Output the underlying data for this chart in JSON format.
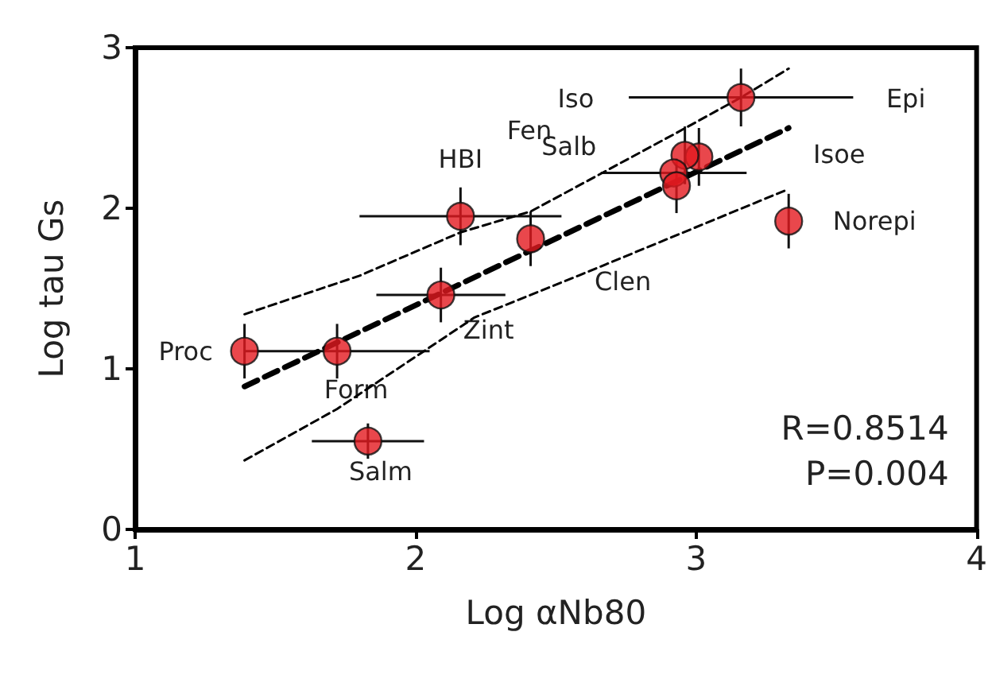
{
  "chart_data": {
    "type": "scatter",
    "xlabel": "Log αNb80",
    "ylabel": "Log tau Gs",
    "xlim": [
      1,
      4
    ],
    "xticks": [
      1,
      2,
      3,
      4
    ],
    "ylim": [
      0,
      3
    ],
    "yticks": [
      0,
      1,
      2,
      3
    ],
    "grid": false,
    "marker": "circle",
    "series": [
      {
        "type": "scatter",
        "color": "#e3191f",
        "x": [
          1.39,
          1.72,
          1.83,
          2.09,
          2.16,
          2.41,
          3.16,
          3.01,
          2.96,
          2.92,
          2.93,
          3.33
        ],
        "values": [
          1.11,
          1.11,
          0.55,
          1.46,
          1.95,
          1.81,
          2.69,
          2.32,
          2.33,
          2.22,
          2.14,
          1.92
        ],
        "errors": [
          0.17,
          0.17,
          0.11,
          0.17,
          0.18,
          0.17,
          0.18,
          0.18,
          0.18,
          null,
          0.17,
          0.17
        ],
        "xerrors": [
          null,
          0.33,
          0.2,
          0.23,
          0.36,
          null,
          0.4,
          null,
          null,
          0.26,
          null,
          null
        ]
      },
      {
        "type": "line",
        "color": "#000000",
        "line_style": "dashed",
        "marker": "none",
        "x": [
          1.39,
          3.33
        ],
        "values": [
          0.89,
          2.5
        ]
      },
      {
        "type": "line",
        "color": "#000000",
        "line_style": "dashed",
        "marker": "none",
        "x": [
          1.39,
          1.8,
          2.16,
          2.41,
          2.92,
          3.16,
          3.33
        ],
        "values": [
          1.34,
          1.58,
          1.85,
          1.98,
          2.46,
          2.69,
          2.87
        ]
      },
      {
        "type": "line",
        "color": "#000000",
        "line_style": "dashed",
        "marker": "none",
        "x": [
          1.39,
          1.72,
          2.21,
          2.58,
          3.33
        ],
        "values": [
          0.43,
          0.75,
          1.32,
          1.58,
          2.12
        ]
      }
    ],
    "annotations": [
      {
        "text": "Proc",
        "x": 1.39,
        "y": 1.11
      },
      {
        "text": "Form",
        "x": 1.72,
        "y": 1.11
      },
      {
        "text": "Salm",
        "x": 1.83,
        "y": 0.55
      },
      {
        "text": "Zint",
        "x": 2.09,
        "y": 1.46
      },
      {
        "text": "HBI",
        "x": 2.16,
        "y": 1.95
      },
      {
        "text": "Clen",
        "x": 2.41,
        "y": 1.81
      },
      "Iso",
      "Epi",
      "Fen",
      "Salb",
      "Isoe",
      {
        "text": "Norepi",
        "x": 3.33,
        "y": 1.92
      },
      "R=0.8514",
      "P=0.004"
    ]
  }
}
